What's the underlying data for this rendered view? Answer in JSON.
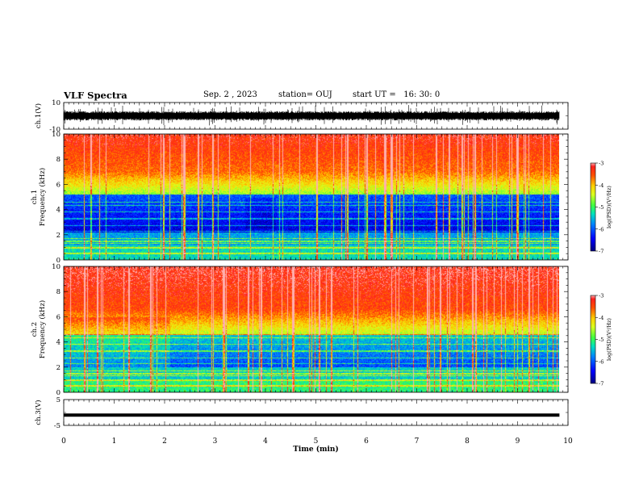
{
  "header": {
    "title": "VLF Spectra",
    "date": "Sep. 2 , 2023",
    "station": "station= OUJ",
    "start_label": "start  UT =",
    "start_time": "16: 30: 0"
  },
  "chart_data": [
    {
      "type": "line",
      "name": "ch1-waveform",
      "ylabel": "ch.1(V)",
      "ylim": [
        -10,
        10
      ],
      "yticks": [
        "10",
        "-10"
      ],
      "x_range_min": [
        0,
        9.83
      ],
      "y_typical": [
        -2,
        2
      ]
    },
    {
      "type": "heatmap",
      "name": "ch1-spectrogram",
      "ylabel": "ch.1\nFrequency (kHz)",
      "ylim": [
        0,
        10
      ],
      "yticks": [
        "0",
        "2",
        "4",
        "6",
        "8",
        "10"
      ],
      "x_range_min": [
        0,
        9.83
      ],
      "colorbar": {
        "label": "log(PSD)(V²/Hz)",
        "range": [
          -7,
          -3
        ],
        "ticks": [
          "-3",
          "-4",
          "-5",
          "-6",
          "-7"
        ]
      }
    },
    {
      "type": "heatmap",
      "name": "ch2-spectrogram",
      "ylabel": "ch.2\nFrequency (kHz)",
      "ylim": [
        0,
        10
      ],
      "yticks": [
        "0",
        "2",
        "4",
        "6",
        "8",
        "10"
      ],
      "x_range_min": [
        0,
        9.83
      ],
      "colorbar": {
        "label": "log(PSD)(V²/Hz)",
        "range": [
          -7,
          -3
        ],
        "ticks": [
          "-3",
          "-4",
          "-5",
          "-6",
          "-7"
        ]
      }
    },
    {
      "type": "line",
      "name": "ch3-waveform",
      "ylabel": "ch.3(V)",
      "ylim": [
        -5,
        5
      ],
      "yticks": [
        "5",
        "-5"
      ],
      "x_range_min": [
        0,
        9.83
      ],
      "y_constant": -1
    }
  ],
  "x_axis": {
    "label": "Time (min)",
    "ticks": [
      "0",
      "1",
      "2",
      "3",
      "4",
      "5",
      "6",
      "7",
      "8",
      "9",
      "10"
    ],
    "range": [
      0,
      10
    ]
  }
}
